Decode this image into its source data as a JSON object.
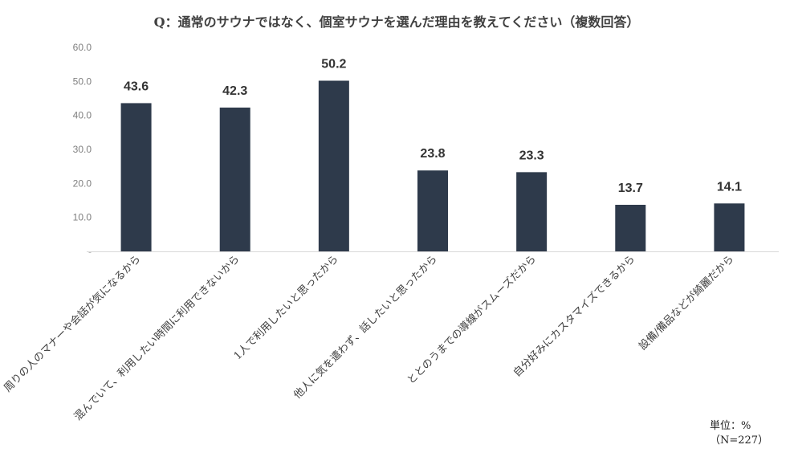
{
  "chart_data": {
    "type": "bar",
    "title": "Q：通常のサウナではなく、個室サウナを選んだ理由を教えてください（複数回答）",
    "categories": [
      "周りの人のマナーや会話が気になるから",
      "混んでいて、利用したい時間に利用できないから",
      "1人で利用したいと思ったから",
      "他人に気を遣わず、話したいと思ったから",
      "ととのうまでの導線がスムーズだから",
      "自分好みにカスタマイズできるから",
      "設備/備品などが綺麗だから"
    ],
    "values": [
      43.6,
      42.3,
      50.2,
      23.8,
      23.3,
      13.7,
      14.1
    ],
    "value_labels": [
      "43.6",
      "42.3",
      "50.2",
      "23.8",
      "23.3",
      "13.7",
      "14.1"
    ],
    "yticks": [
      "-",
      "10.0",
      "20.0",
      "30.0",
      "40.0",
      "50.0",
      "60.0"
    ],
    "ylim": [
      0,
      60
    ],
    "grid": false,
    "bar_color": "#2e3a4b",
    "xlabel": "",
    "ylabel": ""
  },
  "notes": {
    "unit": "単位：%",
    "sample": "（N=227）"
  }
}
